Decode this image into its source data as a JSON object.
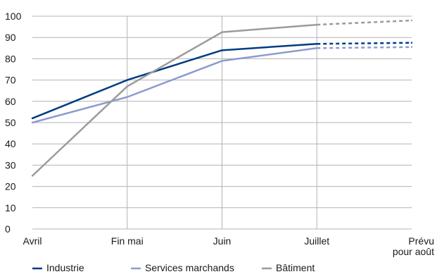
{
  "chart_data": {
    "type": "line",
    "title": "",
    "xlabel": "",
    "ylabel": "",
    "categories": [
      "Avril",
      "Fin mai",
      "Juin",
      "Juillet",
      "Prévu pour août"
    ],
    "category_lines": [
      [
        "Avril"
      ],
      [
        "Fin mai"
      ],
      [
        "Juin"
      ],
      [
        "Juillet"
      ],
      [
        "Prévu",
        "pour août"
      ]
    ],
    "yticks": [
      0,
      10,
      20,
      30,
      40,
      50,
      60,
      70,
      80,
      90,
      100
    ],
    "ylim": [
      0,
      100
    ],
    "grid": "horizontal and vertical",
    "legend_position": "bottom",
    "forecast_from_index": 3,
    "forecast_style": "dashed",
    "series": [
      {
        "name": "Industrie",
        "values": [
          52,
          70,
          84,
          87,
          87.5
        ],
        "color": "#003c82"
      },
      {
        "name": "Services marchands",
        "values": [
          50,
          62,
          79,
          85,
          85.5
        ],
        "color": "#8c9cd0"
      },
      {
        "name": "Bâtiment",
        "values": [
          25,
          67,
          92.5,
          96,
          98
        ],
        "color": "#9b9b9b"
      }
    ]
  }
}
